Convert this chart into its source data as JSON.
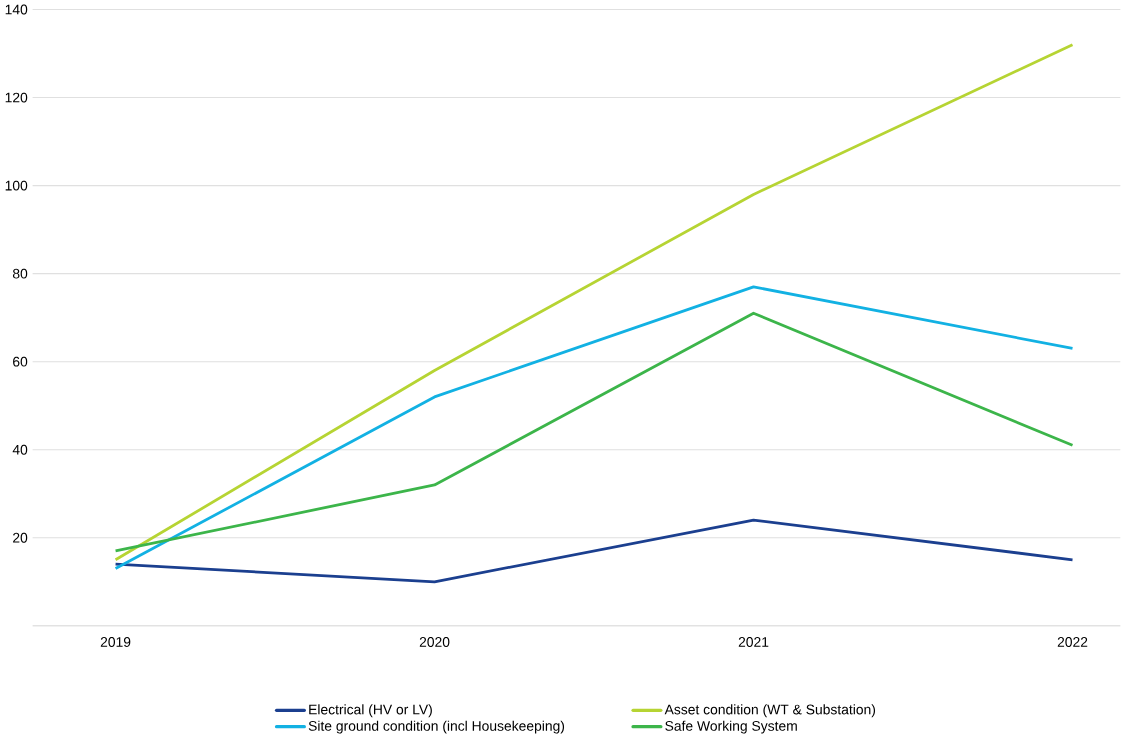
{
  "chart_data": {
    "type": "line",
    "categories": [
      "2019",
      "2020",
      "2021",
      "2022"
    ],
    "series": [
      {
        "name": "Electrical (HV or LV)",
        "color": "#1b3f8f",
        "values": [
          14,
          10,
          24,
          15
        ]
      },
      {
        "name": "Site ground condition (incl Housekeeping)",
        "color": "#12b1e3",
        "values": [
          13,
          52,
          77,
          63
        ]
      },
      {
        "name": "Asset condition (WT & Substation)",
        "color": "#b6d433",
        "values": [
          15,
          58,
          98,
          132
        ]
      },
      {
        "name": "Safe Working System",
        "color": "#3cb54a",
        "values": [
          17,
          32,
          71,
          41
        ]
      }
    ],
    "ylim": [
      0,
      140
    ],
    "yticks": [
      20,
      40,
      60,
      80,
      100,
      120,
      140
    ],
    "grid": "y",
    "legend": "bottom",
    "marker": "none",
    "line_style": "solid"
  }
}
